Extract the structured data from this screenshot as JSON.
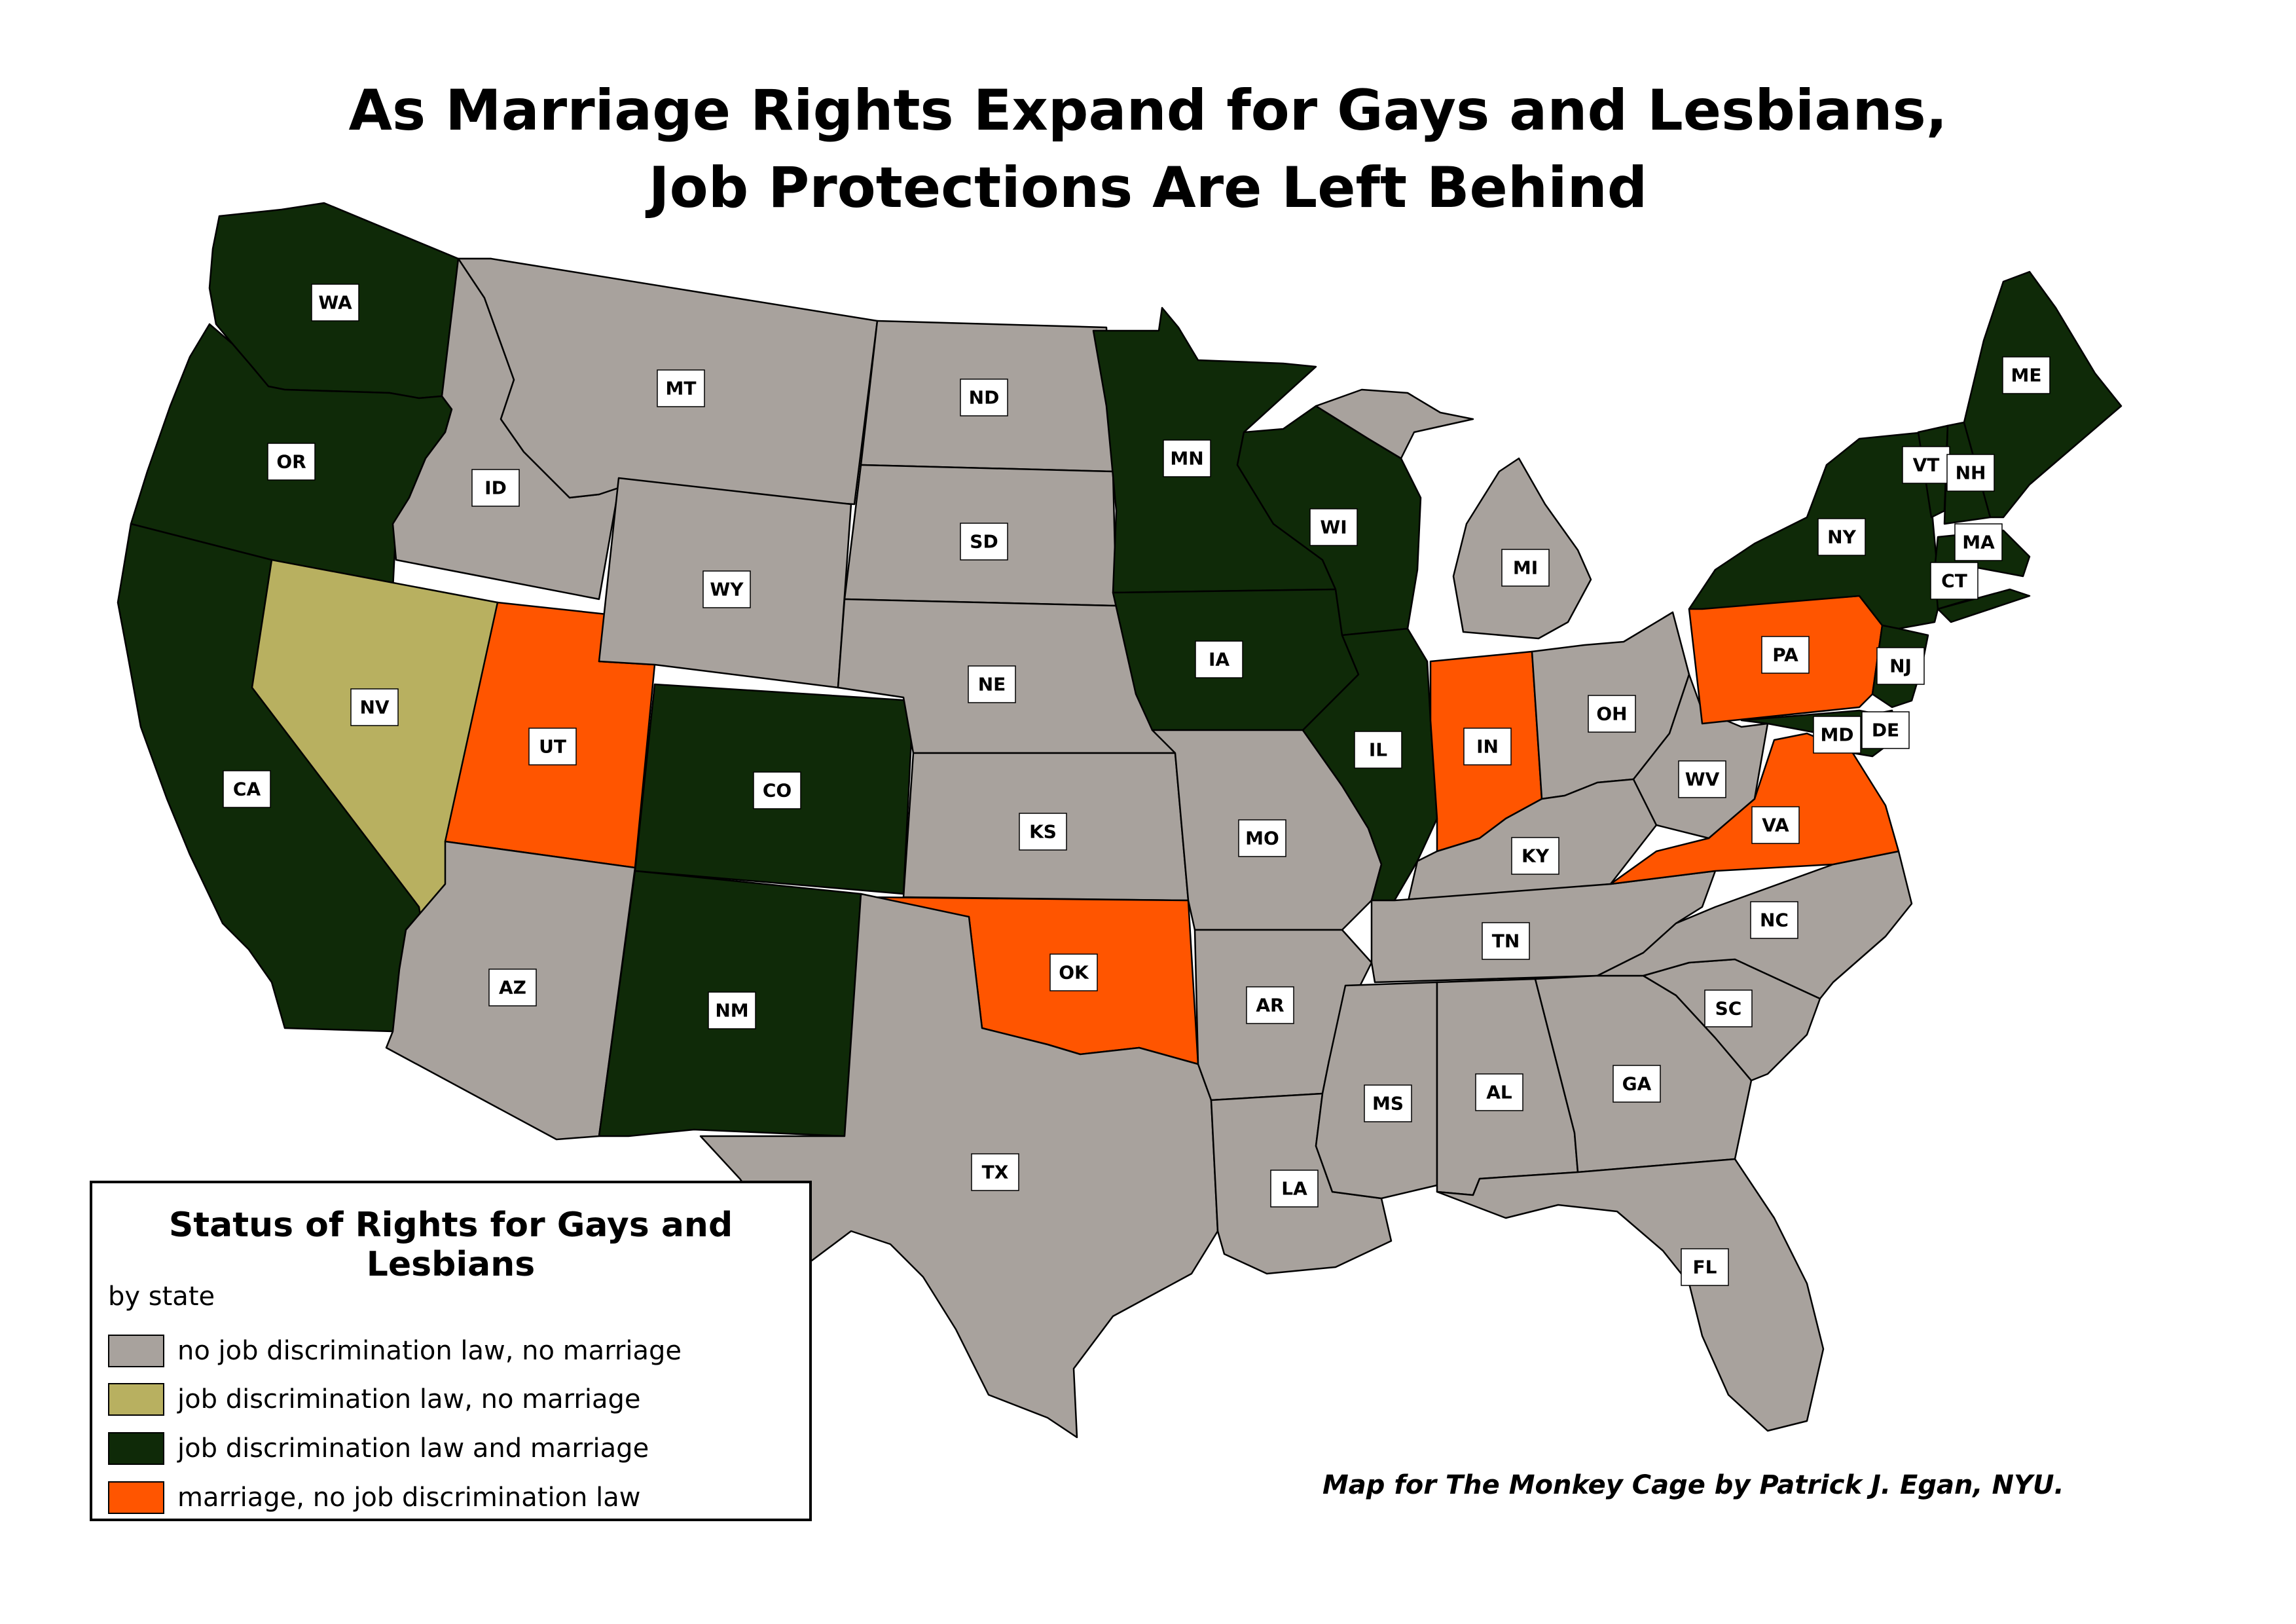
{
  "title_line1": "As Marriage Rights Expand for Gays and Lesbians,",
  "title_line2": "Job Protections Are Left Behind",
  "legend": {
    "title": "Status of Rights for Gays and Lesbians",
    "subtitle": "by state",
    "items": [
      {
        "label": "no job discrimination law, no marriage",
        "color": "#a8a29d"
      },
      {
        "label": "job discrimination law, no marriage",
        "color": "#b8b060"
      },
      {
        "label": "job discrimination law and marriage",
        "color": "#0f2a08"
      },
      {
        "label": "marriage, no job discrimination law",
        "color": "#ff5500"
      }
    ]
  },
  "credit": "Map for The Monkey Cage by Patrick J. Egan, NYU.",
  "states": [
    {
      "abbr": "WA",
      "category": 2
    },
    {
      "abbr": "OR",
      "category": 2
    },
    {
      "abbr": "CA",
      "category": 2
    },
    {
      "abbr": "ID",
      "category": 0
    },
    {
      "abbr": "NV",
      "category": 1
    },
    {
      "abbr": "UT",
      "category": 3
    },
    {
      "abbr": "AZ",
      "category": 0
    },
    {
      "abbr": "MT",
      "category": 0
    },
    {
      "abbr": "WY",
      "category": 0
    },
    {
      "abbr": "CO",
      "category": 2
    },
    {
      "abbr": "NM",
      "category": 2
    },
    {
      "abbr": "ND",
      "category": 0
    },
    {
      "abbr": "SD",
      "category": 0
    },
    {
      "abbr": "NE",
      "category": 0
    },
    {
      "abbr": "KS",
      "category": 0
    },
    {
      "abbr": "OK",
      "category": 3
    },
    {
      "abbr": "TX",
      "category": 0
    },
    {
      "abbr": "MN",
      "category": 2
    },
    {
      "abbr": "IA",
      "category": 2
    },
    {
      "abbr": "MO",
      "category": 0
    },
    {
      "abbr": "AR",
      "category": 0
    },
    {
      "abbr": "LA",
      "category": 0
    },
    {
      "abbr": "WI",
      "category": 2
    },
    {
      "abbr": "IL",
      "category": 2
    },
    {
      "abbr": "MI",
      "category": 0
    },
    {
      "abbr": "IN",
      "category": 3
    },
    {
      "abbr": "OH",
      "category": 0
    },
    {
      "abbr": "KY",
      "category": 0
    },
    {
      "abbr": "TN",
      "category": 0
    },
    {
      "abbr": "MS",
      "category": 0
    },
    {
      "abbr": "AL",
      "category": 0
    },
    {
      "abbr": "GA",
      "category": 0
    },
    {
      "abbr": "FL",
      "category": 0
    },
    {
      "abbr": "SC",
      "category": 0
    },
    {
      "abbr": "NC",
      "category": 0
    },
    {
      "abbr": "VA",
      "category": 3
    },
    {
      "abbr": "WV",
      "category": 0
    },
    {
      "abbr": "PA",
      "category": 3
    },
    {
      "abbr": "NY",
      "category": 2
    },
    {
      "abbr": "NJ",
      "category": 2
    },
    {
      "abbr": "DE",
      "category": 2
    },
    {
      "abbr": "MD",
      "category": 2
    },
    {
      "abbr": "CT",
      "category": 2
    },
    {
      "abbr": "MA",
      "category": 2
    },
    {
      "abbr": "VT",
      "category": 2
    },
    {
      "abbr": "NH",
      "category": 2
    },
    {
      "abbr": "ME",
      "category": 2
    }
  ]
}
